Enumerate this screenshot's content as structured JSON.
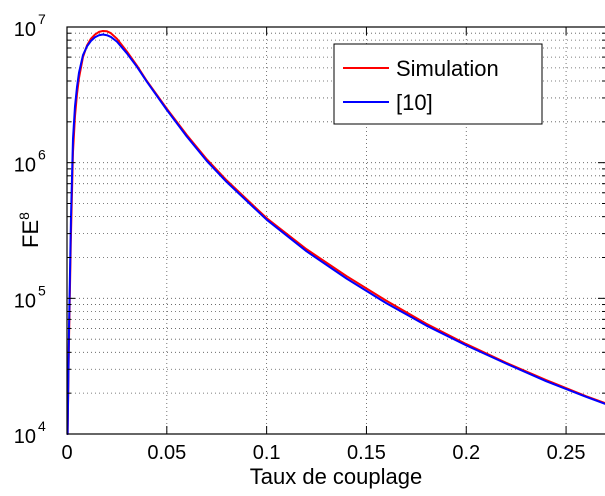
{
  "chart_data": {
    "type": "line",
    "title": "",
    "xlabel": "Taux de couplage",
    "ylabel_base": "FE",
    "ylabel_sup": "8",
    "yscale": "log",
    "xlim": [
      0,
      0.27
    ],
    "ylim": [
      10000,
      10000000
    ],
    "grid": true,
    "x_ticks": [
      0,
      0.05,
      0.1,
      0.15,
      0.2,
      0.25
    ],
    "x_tick_labels": [
      "0",
      "0.05",
      "0.1",
      "0.15",
      "0.2",
      "0.25"
    ],
    "y_ticks": [
      {
        "value": 10000,
        "base": "10",
        "exp": "4"
      },
      {
        "value": 100000,
        "base": "10",
        "exp": "5"
      },
      {
        "value": 1000000,
        "base": "10",
        "exp": "6"
      },
      {
        "value": 10000000,
        "base": "10",
        "exp": "7"
      }
    ],
    "legend_position": "top-right",
    "series": [
      {
        "name": "Simulation",
        "color": "#ff0000",
        "x": [
          0.0003,
          0.001,
          0.002,
          0.003,
          0.004,
          0.005,
          0.006,
          0.008,
          0.01,
          0.012,
          0.014,
          0.016,
          0.018,
          0.02,
          0.022,
          0.025,
          0.03,
          0.035,
          0.04,
          0.05,
          0.06,
          0.07,
          0.08,
          0.1,
          0.12,
          0.14,
          0.16,
          0.18,
          0.2,
          0.22,
          0.24,
          0.26,
          0.27
        ],
        "y": [
          10000,
          50000,
          300000,
          1200000,
          2200000,
          3200000,
          4200000,
          6000000,
          7300000,
          8200000,
          8800000,
          9200000,
          9350000,
          9300000,
          9000000,
          8200000,
          6600000,
          5200000,
          4000000,
          2500000,
          1600000,
          1060000,
          740000,
          390000,
          230000,
          146000,
          96000,
          65000,
          46000,
          33500,
          25000,
          19000,
          16800
        ]
      },
      {
        "name": "[10]",
        "color": "#0000ff",
        "x": [
          0.0003,
          0.001,
          0.002,
          0.003,
          0.004,
          0.005,
          0.006,
          0.008,
          0.01,
          0.012,
          0.014,
          0.016,
          0.018,
          0.02,
          0.022,
          0.025,
          0.03,
          0.035,
          0.04,
          0.05,
          0.06,
          0.07,
          0.08,
          0.1,
          0.12,
          0.14,
          0.16,
          0.18,
          0.2,
          0.22,
          0.24,
          0.26,
          0.27
        ],
        "y": [
          10000,
          60000,
          400000,
          1500000,
          2600000,
          3600000,
          4600000,
          6200000,
          7200000,
          7900000,
          8400000,
          8700000,
          8800000,
          8700000,
          8450000,
          7800000,
          6400000,
          5100000,
          3950000,
          2450000,
          1560000,
          1030000,
          720000,
          380000,
          222000,
          140000,
          92000,
          63000,
          45000,
          33000,
          24500,
          18800,
          16600
        ]
      }
    ]
  }
}
